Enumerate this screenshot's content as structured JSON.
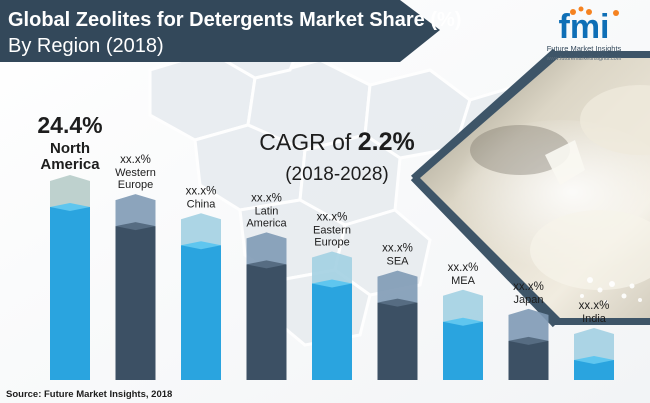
{
  "header": {
    "title_line1": "Global Zeolites for Detergents Market Share (%)",
    "title_line2": "By Region (2018)"
  },
  "logo": {
    "letters": "fmi",
    "name": "Future Market Insights",
    "url": "www.futuremarketinsights.com"
  },
  "cagr": {
    "prefix": "CAGR of ",
    "value": "2.2%",
    "period": "(2018-2028)"
  },
  "source": "Source: Future Market Insights, 2018",
  "colors": {
    "header_bg": "#33485a",
    "bar_blue": "#2aa4df",
    "bar_blue_top": "#5fc6ef",
    "bar_dark": "#3c5064",
    "bar_dark_top": "#566c82",
    "cap_blue": "#a3d0e2",
    "cap_dark": "#7f9ab5",
    "cap_first": "#b7ccc9",
    "logo_orange": "#f58220",
    "logo_blue": "#0f6fb6"
  },
  "chart_data": {
    "type": "bar",
    "title": "Global Zeolites for Detergents Market Share (%) By Region (2018)",
    "categories": [
      "North America",
      "Western Europe",
      "China",
      "Latin America",
      "Eastern Europe",
      "SEA",
      "MEA",
      "Japan",
      "India"
    ],
    "category_lines": [
      [
        "North",
        "America"
      ],
      [
        "Western",
        "Europe"
      ],
      [
        "China"
      ],
      [
        "Latin",
        "America"
      ],
      [
        "Eastern",
        "Europe"
      ],
      [
        "SEA"
      ],
      [
        "MEA"
      ],
      [
        "Japan"
      ],
      [
        "India"
      ]
    ],
    "data_labels": [
      "24.4%",
      "xx.x%",
      "xx.x%",
      "xx.x%",
      "xx.x%",
      "xx.x%",
      "xx.x%",
      "xx.x%",
      "xx.x%"
    ],
    "values": [
      24.4,
      null,
      null,
      null,
      null,
      null,
      null,
      null,
      null
    ],
    "visual_order": "descending",
    "unit": "%"
  }
}
